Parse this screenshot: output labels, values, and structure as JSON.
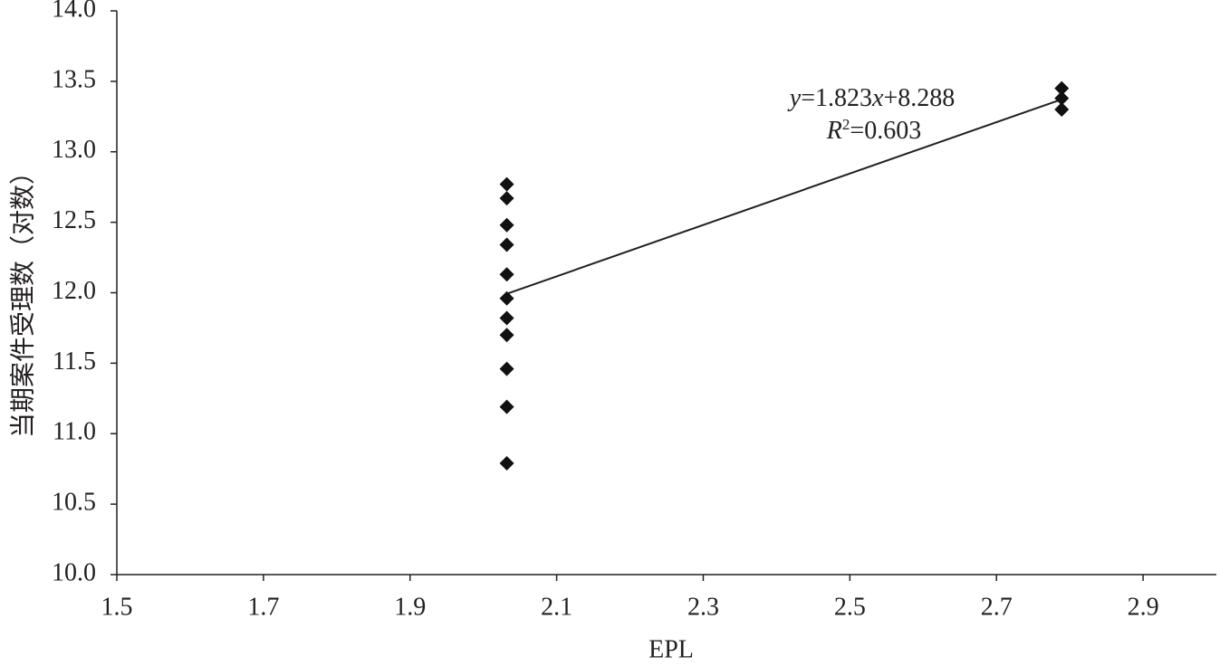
{
  "chart_data": {
    "type": "scatter",
    "x_label": "EPL",
    "y_label": "当期案件受理数（对数）",
    "x": [
      2.032,
      2.032,
      2.032,
      2.032,
      2.032,
      2.032,
      2.032,
      2.032,
      2.032,
      2.032,
      2.032,
      2.789,
      2.789,
      2.789
    ],
    "values": [
      12.77,
      12.67,
      12.48,
      12.34,
      12.13,
      11.96,
      11.82,
      11.7,
      11.46,
      11.19,
      10.79,
      13.45,
      13.38,
      13.3
    ],
    "color": "#111111",
    "marker": "diamond",
    "xlim": [
      1.5,
      3.0
    ],
    "xticks": [
      1.5,
      1.7,
      1.9,
      2.1,
      2.3,
      2.5,
      2.7,
      2.9
    ],
    "ylim": [
      10,
      14
    ],
    "yticks": [
      {
        "value": 10,
        "label": "10.0"
      },
      10.5,
      {
        "value": 11,
        "label": "11.0"
      },
      11.5,
      {
        "value": 12,
        "label": "12.0"
      },
      12.5,
      {
        "value": 13,
        "label": "13.0"
      },
      13.5,
      {
        "value": 14,
        "label": "14.0"
      }
    ],
    "grid": false,
    "trendline": {
      "slope": 1.823,
      "intercept": 8.288,
      "r_squared": 0.603,
      "equation": [
        "y",
        "=1.823",
        "x",
        "+8.288"
      ],
      "r_squared_label": [
        "R",
        "2",
        "=0.603"
      ]
    }
  }
}
